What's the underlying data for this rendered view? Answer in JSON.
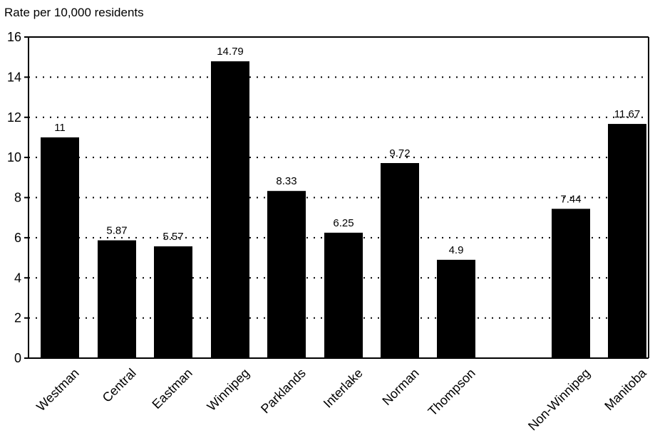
{
  "chart_data": {
    "type": "bar",
    "title": "",
    "xlabel": "",
    "ylabel": "Rate per 10,000 residents",
    "ylim": [
      0,
      16
    ],
    "yticks": [
      0,
      2,
      4,
      6,
      8,
      10,
      12,
      14,
      16
    ],
    "grid": "horizontal dotted",
    "categories": [
      "Westman",
      "Central",
      "Eastman",
      "Winnipeg",
      "Parklands",
      "Interlake",
      "Norman",
      "Thompson",
      "Non-Winnipeg",
      "Manitoba"
    ],
    "values": [
      11,
      5.87,
      5.57,
      14.79,
      8.33,
      6.25,
      9.72,
      4.9,
      7.44,
      11.67
    ],
    "value_labels": [
      "11",
      "5.87",
      "5.57",
      "14.79",
      "8.33",
      "6.25",
      "9.72",
      "4.9",
      "7.44",
      "11.67"
    ],
    "bar_color": "#000000"
  }
}
